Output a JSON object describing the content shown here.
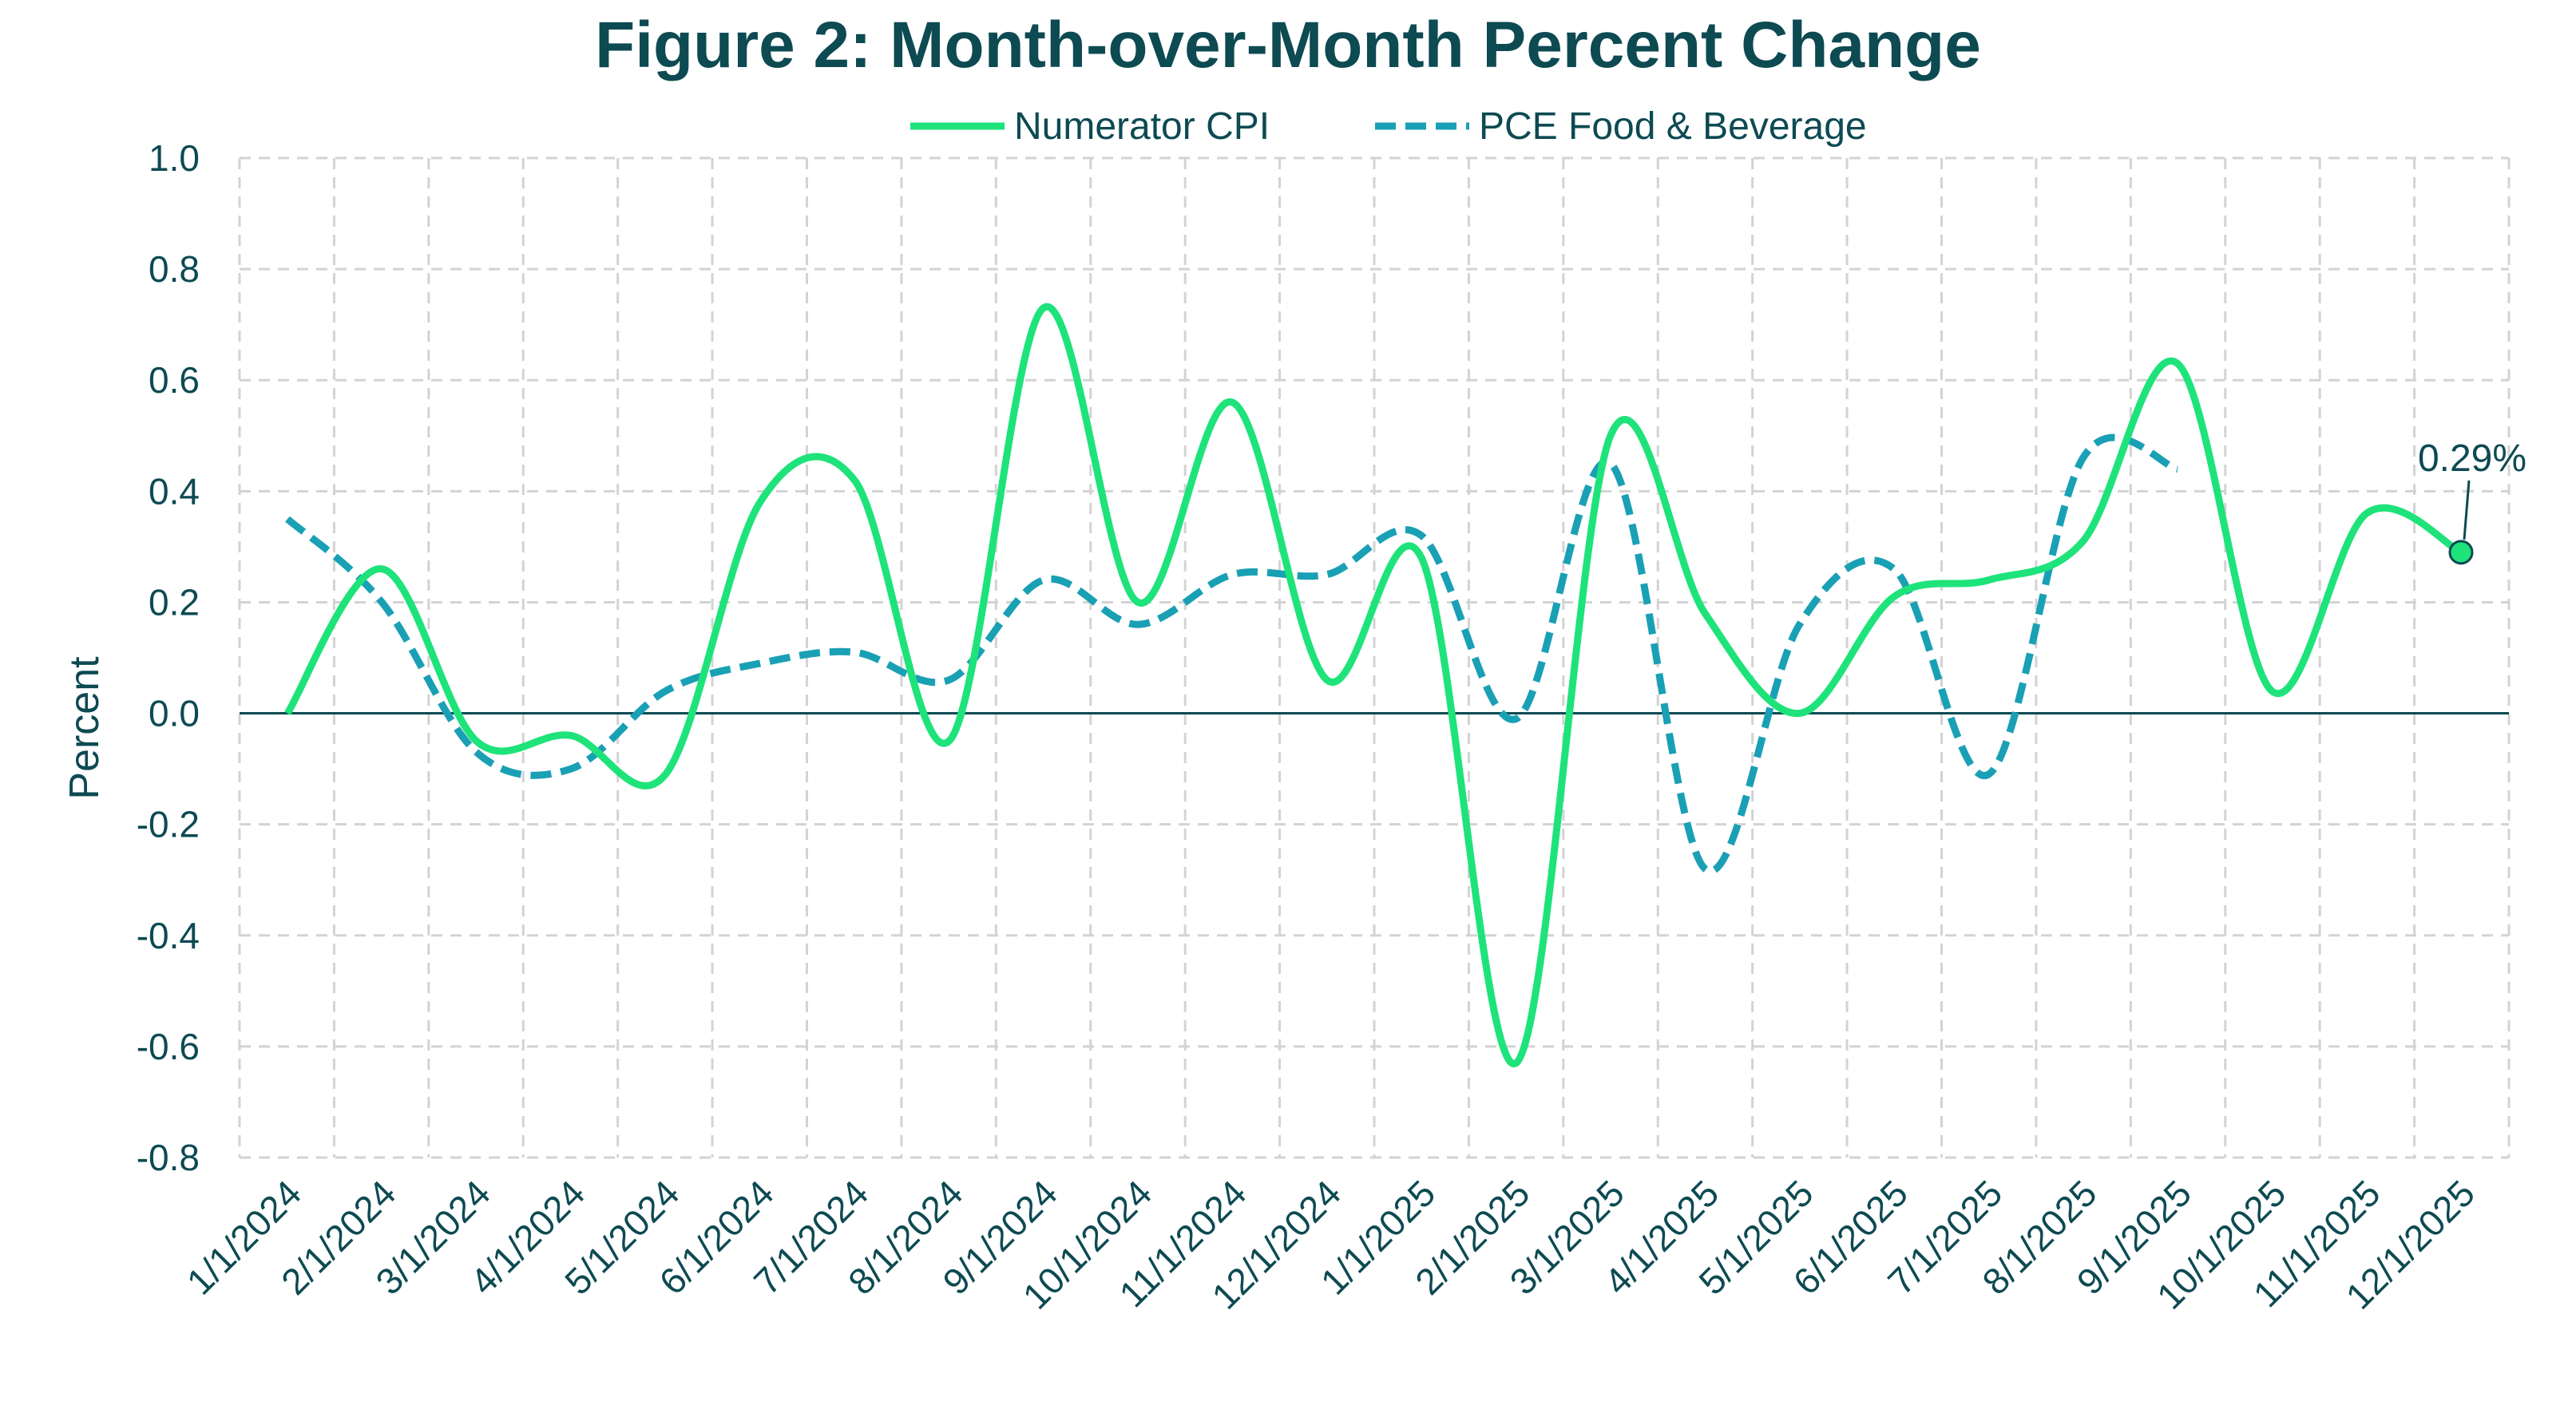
{
  "chart_data": {
    "type": "line",
    "title": "Figure 2: Month-over-Month Percent Change",
    "xlabel": "",
    "ylabel": "Percent",
    "ylim": [
      -0.8,
      1.0
    ],
    "yticks": [
      -0.8,
      -0.6,
      -0.4,
      -0.2,
      0.0,
      0.2,
      0.4,
      0.6,
      0.8,
      1.0
    ],
    "ytick_labels": [
      "-0.8",
      "-0.6",
      "-0.4",
      "-0.2",
      "0.0",
      "0.2",
      "0.4",
      "0.6",
      "0.8",
      "1.0"
    ],
    "grid": true,
    "legend_position": "top-center",
    "categories": [
      "1/1/2024",
      "2/1/2024",
      "3/1/2024",
      "4/1/2024",
      "5/1/2024",
      "6/1/2024",
      "7/1/2024",
      "8/1/2024",
      "9/1/2024",
      "10/1/2024",
      "11/1/2024",
      "12/1/2024",
      "1/1/2025",
      "2/1/2025",
      "3/1/2025",
      "4/1/2025",
      "5/1/2025",
      "6/1/2025",
      "7/1/2025",
      "8/1/2025",
      "9/1/2025",
      "10/1/2025",
      "11/1/2025",
      "12/1/2025"
    ],
    "series": [
      {
        "name": "Numerator CPI",
        "style": "solid",
        "color": "#1ee37a",
        "values": [
          0.0,
          0.26,
          -0.05,
          -0.04,
          -0.11,
          0.38,
          0.42,
          -0.05,
          0.73,
          0.2,
          0.56,
          0.06,
          0.28,
          -0.63,
          0.5,
          0.18,
          0.0,
          0.21,
          0.24,
          0.31,
          0.63,
          0.04,
          0.36,
          0.29
        ]
      },
      {
        "name": "PCE Food & Beverage",
        "style": "dashed",
        "color": "#1aa0b5",
        "values": [
          0.35,
          0.2,
          -0.07,
          -0.1,
          0.04,
          0.09,
          0.11,
          0.06,
          0.24,
          0.16,
          0.25,
          0.25,
          0.32,
          -0.01,
          0.45,
          -0.28,
          0.16,
          0.26,
          -0.11,
          0.46,
          0.44,
          null,
          null,
          null
        ]
      }
    ],
    "annotation": {
      "label": "0.29%",
      "series": "Numerator CPI",
      "category": "12/1/2025",
      "value": 0.29
    },
    "reference_line": {
      "value": 0.0,
      "color": "#0d4a52"
    }
  }
}
